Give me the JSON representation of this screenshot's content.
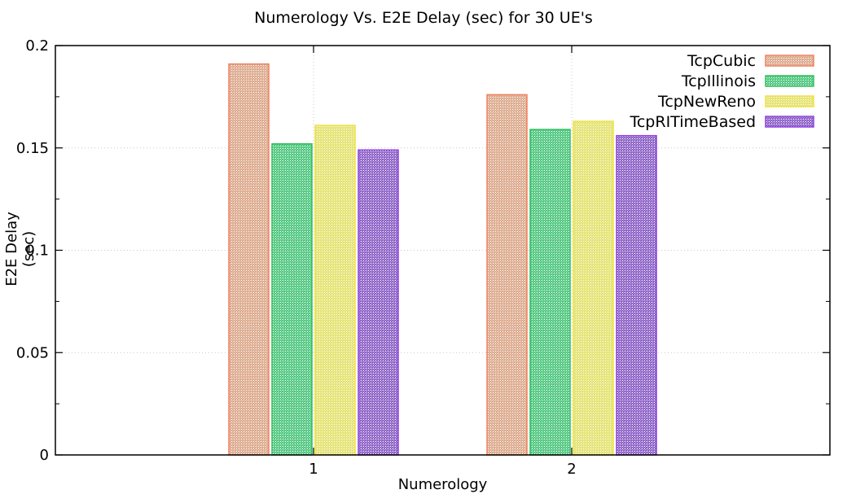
{
  "chart_data": {
    "type": "bar",
    "title": "Numerology Vs. E2E Delay (sec) for 30 UE's",
    "xlabel": "Numerology",
    "ylabel": "E2E Delay (sec)",
    "categories": [
      "1",
      "2"
    ],
    "ylim": [
      0,
      0.2
    ],
    "yticks": [
      "0",
      "0.05",
      "0.1",
      "0.15",
      "0.2"
    ],
    "grid": true,
    "legend_position": "top-right",
    "series": [
      {
        "name": "TcpCubic",
        "values": [
          0.191,
          0.176
        ],
        "color": "#d9a080",
        "border": "#f08060"
      },
      {
        "name": "TcpIllinois",
        "values": [
          0.152,
          0.159
        ],
        "color": "#3cc070",
        "border": "#30c060"
      },
      {
        "name": "TcpNewReno",
        "values": [
          0.161,
          0.163
        ],
        "color": "#e0e060",
        "border": "#f0e040"
      },
      {
        "name": "TcpRITimeBased",
        "values": [
          0.149,
          0.156
        ],
        "color": "#8050c0",
        "border": "#9040e0"
      }
    ]
  }
}
